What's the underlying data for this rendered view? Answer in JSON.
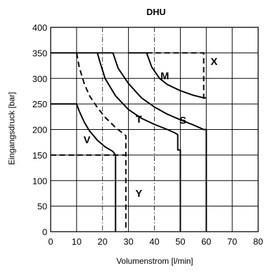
{
  "chart_data": {
    "type": "line",
    "title": "DHU",
    "xlabel": "Volumenstrom [l/min]",
    "ylabel": "Eingangsdruck [bar]",
    "xlim": [
      0,
      80
    ],
    "ylim": [
      0,
      400
    ],
    "xticks": [
      "0",
      "10",
      "20",
      "30",
      "40",
      "50",
      "60",
      "70",
      "80"
    ],
    "yticks": [
      "0",
      "50",
      "100",
      "150",
      "200",
      "250",
      "300",
      "350",
      "400"
    ],
    "grid": true,
    "grid_style": {
      "major": "solid",
      "midlines_at_x": [
        20,
        40
      ],
      "midline_style": "dash-dot"
    },
    "series": [
      {
        "name": "V",
        "style": "solid",
        "label_pos": [
          14,
          180
        ],
        "points": [
          [
            0,
            250
          ],
          [
            10,
            250
          ],
          [
            11,
            236
          ],
          [
            13,
            214
          ],
          [
            15,
            197
          ],
          [
            18,
            179
          ],
          [
            21,
            166
          ],
          [
            24,
            157
          ],
          [
            25,
            150
          ],
          [
            25,
            0
          ]
        ]
      },
      {
        "name": "Y",
        "style": "dashed",
        "label_pos": [
          34,
          75
        ],
        "points": [
          [
            0,
            150
          ],
          [
            29,
            150
          ],
          [
            29,
            0
          ]
        ]
      },
      {
        "name": "",
        "style": "dashed",
        "points": [
          [
            10,
            350
          ],
          [
            11,
            322
          ],
          [
            13,
            289
          ],
          [
            15,
            266
          ],
          [
            18,
            243
          ],
          [
            21,
            224
          ],
          [
            25,
            204
          ],
          [
            29,
            188
          ],
          [
            29,
            150
          ]
        ]
      },
      {
        "name": "T",
        "style": "solid",
        "label_pos": [
          34,
          220
        ],
        "points": [
          [
            0,
            350
          ],
          [
            10,
            350
          ],
          [
            18,
            350
          ],
          [
            19,
            332
          ],
          [
            21,
            300
          ],
          [
            25,
            266
          ],
          [
            30,
            239
          ],
          [
            35,
            222
          ],
          [
            40,
            210
          ],
          [
            45,
            200
          ],
          [
            48,
            193
          ],
          [
            49,
            190
          ],
          [
            49,
            160
          ],
          [
            50,
            160
          ],
          [
            50,
            0
          ]
        ]
      },
      {
        "name": "S",
        "style": "solid",
        "label_pos": [
          51,
          218
        ],
        "points": [
          [
            18,
            350
          ],
          [
            24,
            350
          ],
          [
            26,
            320
          ],
          [
            30,
            290
          ],
          [
            35,
            262
          ],
          [
            40,
            244
          ],
          [
            45,
            230
          ],
          [
            50,
            219
          ],
          [
            55,
            209
          ],
          [
            59,
            200
          ],
          [
            60,
            200
          ],
          [
            60,
            0
          ]
        ]
      },
      {
        "name": "M",
        "style": "solid",
        "label_pos": [
          44,
          305
        ],
        "points": [
          [
            30,
            350
          ],
          [
            37,
            350
          ],
          [
            39,
            322
          ],
          [
            42,
            300
          ],
          [
            45,
            288
          ],
          [
            50,
            276
          ],
          [
            55,
            267
          ],
          [
            59,
            262
          ],
          [
            60,
            262
          ]
        ]
      },
      {
        "name": "X",
        "style": "dashed",
        "label_pos": [
          63,
          333
        ],
        "points": [
          [
            37,
            350
          ],
          [
            59,
            350
          ],
          [
            59,
            260
          ]
        ]
      }
    ]
  }
}
